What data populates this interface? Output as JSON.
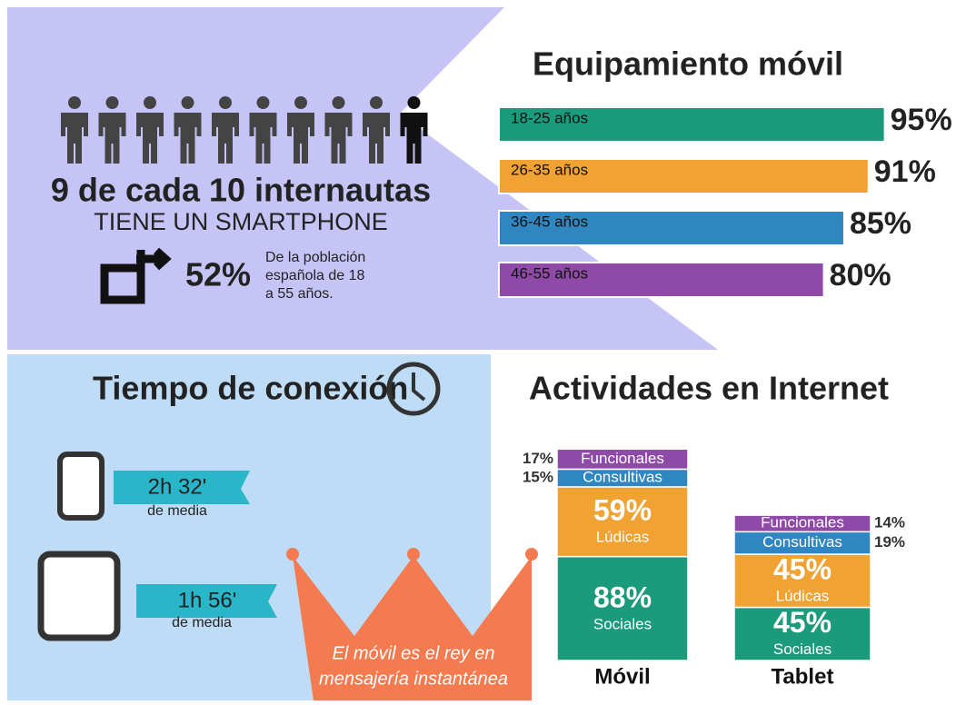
{
  "smartphone": {
    "headline": "9 de cada 10 internautas",
    "subline": "TIENE UN SMARTPHONE",
    "share": "52%",
    "note_lines": [
      "De la población",
      "española de 18",
      "a 55 años."
    ]
  },
  "tiempo": {
    "title": "Tiempo de conexión",
    "movil": {
      "value": "2h 32'",
      "label": "de media"
    },
    "tablet": {
      "value": "1h 56'",
      "label": "de media"
    }
  },
  "crown_lines": [
    "El móvil es el rey en",
    "mensajería instantánea"
  ],
  "chart_data": [
    {
      "type": "bar",
      "title": "Equipamiento móvil",
      "categories": [
        "18-25 años",
        "26-35 años",
        "36-45 años",
        "46-55 años"
      ],
      "values": [
        95,
        91,
        85,
        80
      ],
      "value_labels": [
        "95%",
        "91%",
        "85%",
        "80%"
      ],
      "colors": [
        "#1b9a7c",
        "#f0a233",
        "#2f86c0",
        "#8e4aa6"
      ]
    },
    {
      "type": "stacked-bar",
      "title": "Actividades en Internet",
      "categories": [
        "Móvil",
        "Tablet"
      ],
      "series": [
        {
          "name": "Sociales",
          "color": "#1b9a7c",
          "values": [
            88,
            45
          ],
          "value_labels": [
            "88%",
            "45%"
          ]
        },
        {
          "name": "Lúdicas",
          "color": "#f0a233",
          "values": [
            59,
            45
          ],
          "value_labels": [
            "59%",
            "45%"
          ]
        },
        {
          "name": "Consultivas",
          "color": "#2f86c0",
          "values": [
            15,
            19
          ],
          "value_labels": [
            "15%",
            "19%"
          ]
        },
        {
          "name": "Funcionales",
          "color": "#8e4aa6",
          "values": [
            17,
            14
          ],
          "value_labels": [
            "17%",
            "14%"
          ]
        }
      ]
    }
  ]
}
